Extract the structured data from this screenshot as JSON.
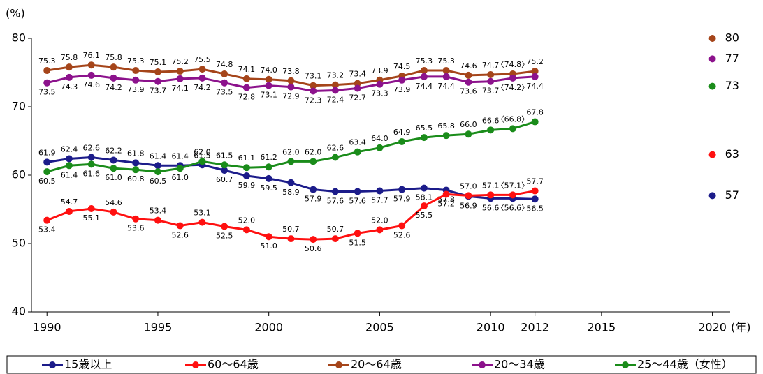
{
  "chart_data": {
    "type": "line",
    "y_unit": "(%)",
    "x_unit": "(年)",
    "x": [
      1990,
      1991,
      1992,
      1993,
      1994,
      1995,
      1996,
      1997,
      1998,
      1999,
      2000,
      2001,
      2002,
      2003,
      2004,
      2005,
      2006,
      2007,
      2008,
      2009,
      2010,
      2011,
      2012
    ],
    "xlim": [
      1989.3,
      2020.8
    ],
    "xticks": [
      1990,
      1995,
      2000,
      2005,
      2010,
      2012,
      2015,
      2020
    ],
    "ylim": [
      40,
      80
    ],
    "yticks": [
      40,
      50,
      60,
      70,
      80
    ],
    "series": [
      {
        "name": "15歳以上",
        "color": "#1c1c8a",
        "target": 57,
        "values": [
          61.9,
          62.4,
          62.6,
          62.2,
          61.8,
          61.4,
          61.4,
          61.5,
          60.7,
          59.9,
          59.5,
          58.9,
          57.9,
          57.6,
          57.6,
          57.7,
          57.9,
          58.1,
          57.8,
          56.9,
          56.6,
          56.6,
          56.5
        ],
        "value_labels": [
          "61.9",
          "62.4",
          "62.6",
          "62.2",
          "61.8",
          "61.4",
          "61.4",
          "61.5",
          "60.7",
          "59.9",
          "59.5",
          "58.9",
          "57.9",
          "57.6",
          "57.6",
          "57.7",
          "57.9",
          "58.1",
          "57.8",
          "56.9",
          "56.6",
          "〈56.6〉",
          "56.5"
        ]
      },
      {
        "name": "60～64歳",
        "color": "#ff1010",
        "target": 63,
        "values": [
          53.4,
          54.7,
          55.1,
          54.6,
          53.6,
          53.4,
          52.6,
          53.1,
          52.5,
          52.0,
          51.0,
          50.7,
          50.6,
          50.7,
          51.5,
          52.0,
          52.6,
          55.5,
          57.2,
          57.0,
          57.1,
          57.1,
          57.7
        ],
        "value_labels": [
          "53.4",
          "54.7",
          "55.1",
          "54.6",
          "53.6",
          "53.4",
          "52.6",
          "53.1",
          "52.5",
          "52.0",
          "51.0",
          "50.7",
          "50.6",
          "50.7",
          "51.5",
          "52.0",
          "52.6",
          "55.5",
          "57.2",
          "57.0",
          "57.1",
          "〈57.1〉",
          "57.7"
        ]
      },
      {
        "name": "20～64歳",
        "color": "#a5451a",
        "target": 80,
        "values": [
          75.3,
          75.8,
          76.1,
          75.8,
          75.3,
          75.1,
          75.2,
          75.5,
          74.8,
          74.1,
          74.0,
          73.8,
          73.1,
          73.2,
          73.4,
          73.9,
          74.5,
          75.3,
          75.3,
          74.6,
          74.7,
          74.8,
          75.2
        ],
        "value_labels": [
          "75.3",
          "75.8",
          "76.1",
          "75.8",
          "75.3",
          "75.1",
          "75.2",
          "75.5",
          "74.8",
          "74.1",
          "74.0",
          "73.8",
          "73.1",
          "73.2",
          "73.4",
          "73.9",
          "74.5",
          "75.3",
          "75.3",
          "74.6",
          "74.7",
          "〈74.8〉",
          "75.2"
        ]
      },
      {
        "name": "20～34歳",
        "color": "#8c128c",
        "target": 77,
        "values": [
          73.5,
          74.3,
          74.6,
          74.2,
          73.9,
          73.7,
          74.1,
          74.2,
          73.5,
          72.8,
          73.1,
          72.9,
          72.3,
          72.4,
          72.7,
          73.3,
          73.9,
          74.4,
          74.4,
          73.6,
          73.7,
          74.2,
          74.4
        ],
        "value_labels": [
          "73.5",
          "74.3",
          "74.6",
          "74.2",
          "73.9",
          "73.7",
          "74.1",
          "74.2",
          "73.5",
          "72.8",
          "73.1",
          "72.9",
          "72.3",
          "72.4",
          "72.7",
          "73.3",
          "73.9",
          "74.4",
          "74.4",
          "73.6",
          "73.7",
          "〈74.2〉",
          "74.4"
        ]
      },
      {
        "name": "25～44歳（女性）",
        "color": "#1a8c1a",
        "target": 73,
        "values": [
          60.5,
          61.4,
          61.6,
          61.0,
          60.8,
          60.5,
          61.0,
          62.0,
          61.5,
          61.1,
          61.2,
          62.0,
          62.0,
          62.6,
          63.4,
          64.0,
          64.9,
          65.5,
          65.8,
          66.0,
          66.6,
          66.8,
          67.8
        ],
        "value_labels": [
          "60.5",
          "61.4",
          "61.6",
          "61.0",
          "60.8",
          "60.5",
          "61.0",
          "62.0",
          "61.5",
          "61.1",
          "61.2",
          "62.0",
          "62.0",
          "62.6",
          "63.4",
          "64.0",
          "64.9",
          "65.5",
          "65.8",
          "66.0",
          "66.6",
          "〈66.8〉",
          "67.8"
        ]
      }
    ]
  }
}
